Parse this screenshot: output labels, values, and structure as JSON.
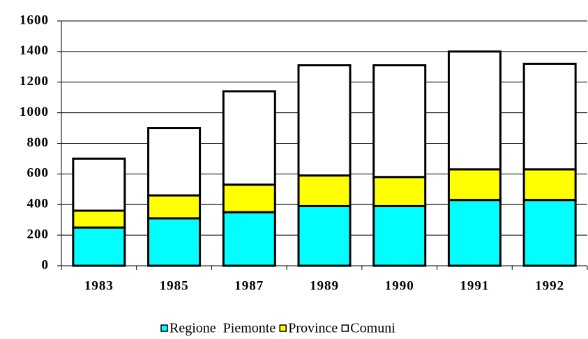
{
  "chart_data": {
    "type": "stacked_bar",
    "categories": [
      "1983",
      "1985",
      "1987",
      "1989",
      "1990",
      "1991",
      "1992"
    ],
    "series": [
      {
        "name": "Regione  Piemonte",
        "color": "#00ffff",
        "values": [
          250,
          310,
          350,
          390,
          390,
          430,
          430
        ]
      },
      {
        "name": "Province",
        "color": "#ffff00",
        "values": [
          110,
          150,
          180,
          200,
          190,
          200,
          200
        ]
      },
      {
        "name": "Comuni",
        "color": "#ffffff",
        "values": [
          340,
          440,
          610,
          720,
          730,
          770,
          690
        ]
      }
    ],
    "ylim": [
      0,
      1600
    ],
    "yticks": [
      0,
      200,
      400,
      600,
      800,
      1000,
      1200,
      1400,
      1600
    ],
    "grid": true,
    "legend": "bottom"
  }
}
